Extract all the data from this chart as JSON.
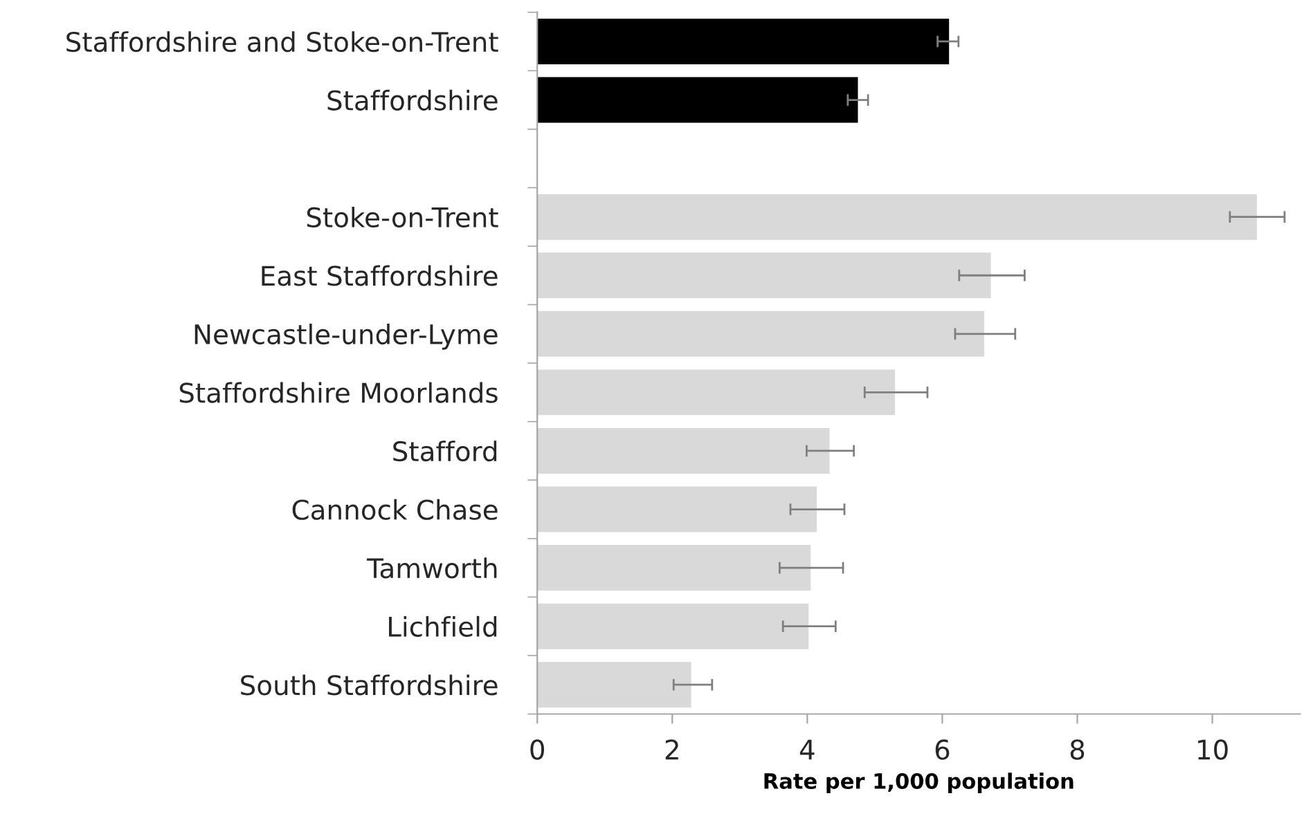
{
  "chart_data": {
    "type": "bar",
    "orientation": "horizontal",
    "xlabel": "Rate per 1,000 population",
    "categories": [
      "Staffordshire and Stoke-on-Trent",
      "Staffordshire",
      null,
      "Stoke-on-Trent",
      "East Staffordshire",
      "Newcastle-under-Lyme",
      "Staffordshire Moorlands",
      "Stafford",
      "Cannock Chase",
      "Tamworth",
      "Lichfield",
      "South Staffordshire"
    ],
    "values": [
      6.1,
      4.75,
      null,
      10.66,
      6.72,
      6.62,
      5.3,
      4.33,
      4.14,
      4.05,
      4.02,
      2.28
    ],
    "errors": [
      [
        5.93,
        6.24
      ],
      [
        4.6,
        4.9
      ],
      null,
      [
        10.26,
        11.07
      ],
      [
        6.25,
        7.22
      ],
      [
        6.19,
        7.08
      ],
      [
        4.85,
        5.78
      ],
      [
        3.99,
        4.69
      ],
      [
        3.75,
        4.55
      ],
      [
        3.59,
        4.53
      ],
      [
        3.64,
        4.42
      ],
      [
        2.02,
        2.59
      ]
    ],
    "colors": [
      "#000000",
      "#000000",
      null,
      "#d9d9d9",
      "#d9d9d9",
      "#d9d9d9",
      "#d9d9d9",
      "#d9d9d9",
      "#d9d9d9",
      "#d9d9d9",
      "#d9d9d9",
      "#d9d9d9"
    ],
    "xlim": [
      0,
      11.3
    ],
    "xticks": [
      0,
      2,
      4,
      6,
      8,
      10
    ],
    "grid": false
  }
}
